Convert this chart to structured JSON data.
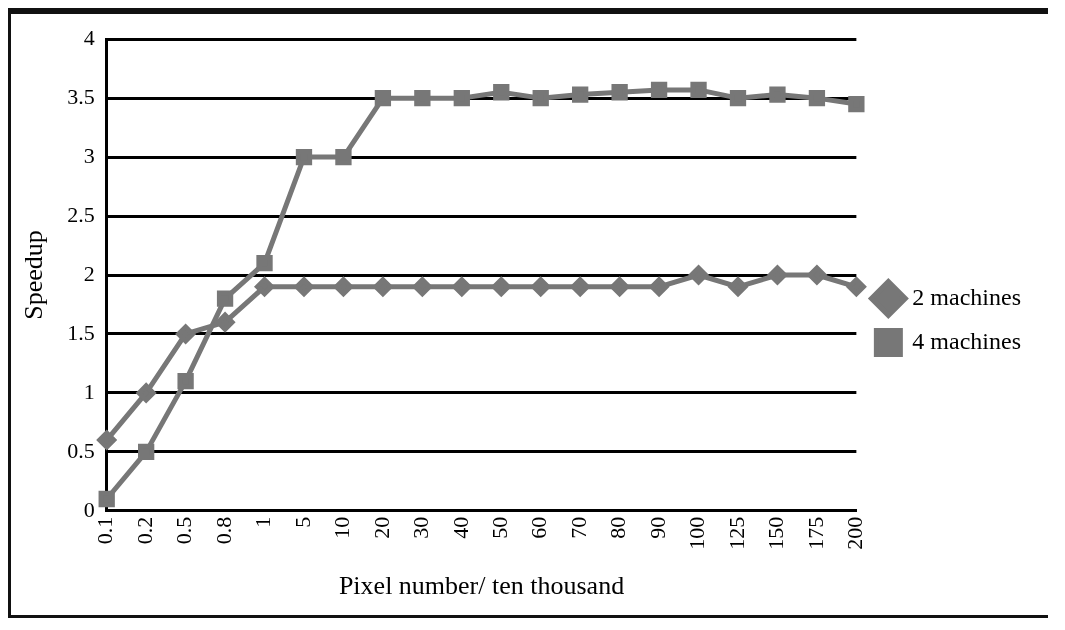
{
  "chart_data": {
    "type": "line",
    "xlabel": "Pixel number/ ten thousand",
    "ylabel": "Speedup",
    "categories": [
      "0.1",
      "0.2",
      "0.5",
      "0.8",
      "1",
      "5",
      "10",
      "20",
      "30",
      "40",
      "50",
      "60",
      "70",
      "80",
      "90",
      "100",
      "125",
      "150",
      "175",
      "200"
    ],
    "series": [
      {
        "name": "2 machines",
        "color": "#777777",
        "marker": "diamond",
        "values": [
          0.6,
          1,
          1.5,
          1.6,
          1.9,
          1.9,
          1.9,
          1.9,
          1.9,
          1.9,
          1.9,
          1.9,
          1.9,
          1.9,
          1.9,
          2,
          1.9,
          2,
          2,
          1.9
        ]
      },
      {
        "name": "4 machines",
        "color": "#777777",
        "marker": "square",
        "values": [
          0.1,
          0.5,
          1.1,
          1.8,
          2.1,
          3,
          3,
          3.5,
          3.5,
          3.5,
          3.55,
          3.5,
          3.53,
          3.55,
          3.57,
          3.57,
          3.5,
          3.53,
          3.5,
          3.45
        ]
      }
    ],
    "ylim": [
      0,
      4
    ],
    "yticks": [
      0,
      0.5,
      1,
      1.5,
      2,
      2.5,
      3,
      3.5,
      4
    ],
    "grid": "y",
    "legend": "right"
  }
}
